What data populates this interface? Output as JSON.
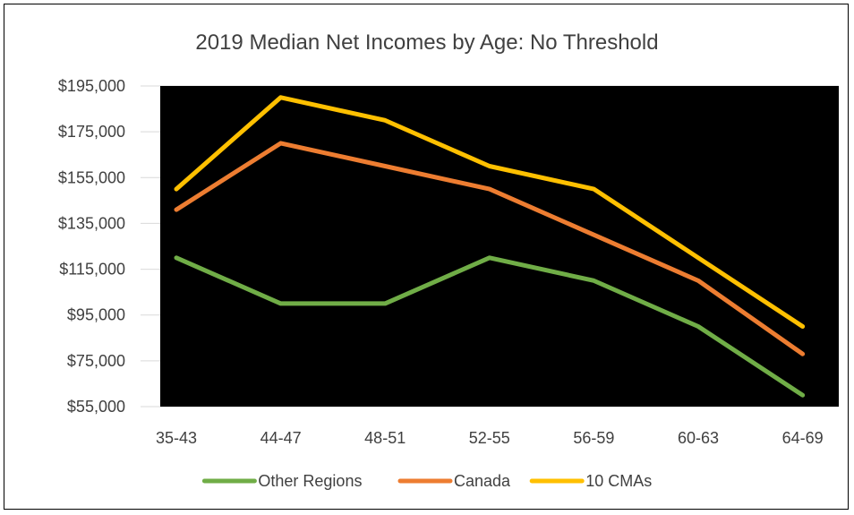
{
  "chart_data": {
    "type": "line",
    "title": "2019 Median Net Incomes by Age: No Threshold",
    "categories": [
      "35-43",
      "44-47",
      "48-51",
      "52-55",
      "56-59",
      "60-63",
      "64-69"
    ],
    "series": [
      {
        "name": "Other Regions",
        "color": "#70ad47",
        "values": [
          120000,
          100000,
          100000,
          120000,
          110000,
          90000,
          60000
        ]
      },
      {
        "name": "Canada",
        "color": "#ed7d31",
        "values": [
          141000,
          170000,
          160000,
          150000,
          130000,
          110000,
          78000
        ]
      },
      {
        "name": "10 CMAs",
        "color": "#ffc000",
        "values": [
          150000,
          190000,
          180000,
          160000,
          150000,
          120000,
          90000
        ]
      }
    ],
    "y_ticks": [
      "$55,000",
      "$75,000",
      "$95,000",
      "$115,000",
      "$135,000",
      "$155,000",
      "$175,000",
      "$195,000"
    ],
    "ylim": [
      55000,
      195000
    ],
    "plot_background": "#000000",
    "grid": true,
    "legend_position": "bottom"
  }
}
